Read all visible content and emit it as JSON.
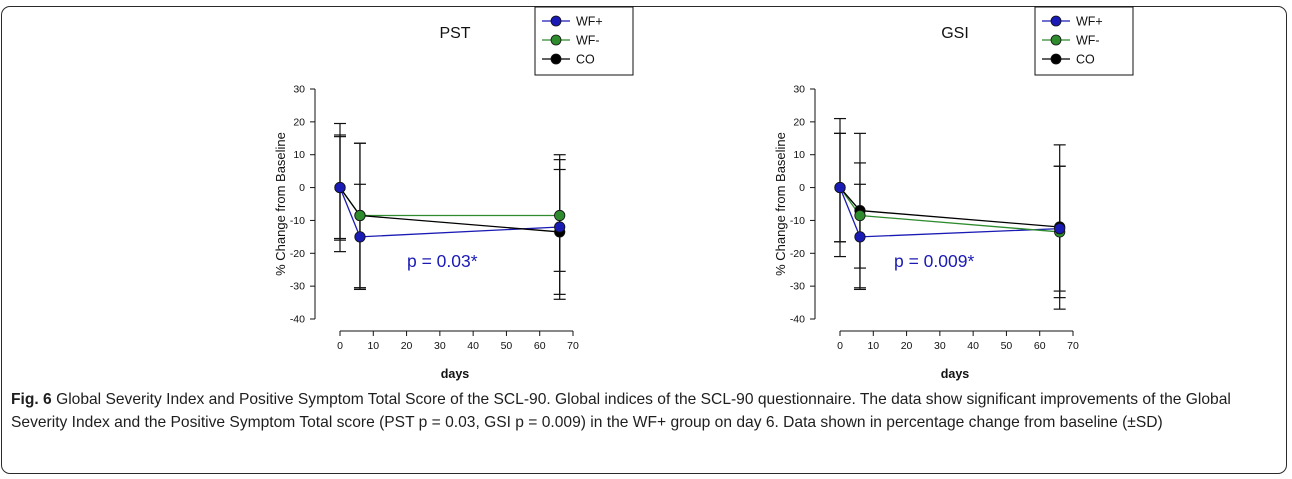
{
  "chart_data": [
    {
      "type": "line",
      "title": "PST",
      "xlabel": "days",
      "ylabel": "% Change from Baseline",
      "xlim": [
        0,
        70
      ],
      "ylim": [
        -40,
        30
      ],
      "xticks": [
        0,
        10,
        20,
        30,
        40,
        50,
        60,
        70
      ],
      "yticks": [
        -40,
        -30,
        -20,
        -10,
        0,
        10,
        20,
        30
      ],
      "x": [
        0,
        6,
        66
      ],
      "grid": false,
      "legend_position": "top-right",
      "series": [
        {
          "name": "WF+",
          "color": "#1a1ab4",
          "values": [
            0,
            -15,
            -12
          ],
          "sd": [
            16,
            16,
            22
          ]
        },
        {
          "name": "WF-",
          "color": "#2e8b2e",
          "values": [
            0,
            -8.5,
            -8.5
          ],
          "sd": [
            15.5,
            22,
            17
          ]
        },
        {
          "name": "CO",
          "color": "#000000",
          "values": [
            0,
            -8.5,
            -13.5
          ],
          "sd": [
            19.5,
            22,
            19
          ]
        }
      ],
      "annotation": "p = 0.03*"
    },
    {
      "type": "line",
      "title": "GSI",
      "xlabel": "days",
      "ylabel": "% Change from Baseline",
      "xlim": [
        0,
        70
      ],
      "ylim": [
        -40,
        30
      ],
      "xticks": [
        0,
        10,
        20,
        30,
        40,
        50,
        60,
        70
      ],
      "yticks": [
        -40,
        -30,
        -20,
        -10,
        0,
        10,
        20,
        30
      ],
      "x": [
        0,
        6,
        66
      ],
      "grid": false,
      "legend_position": "top-right",
      "series": [
        {
          "name": "WF+",
          "color": "#1a1ab4",
          "values": [
            0,
            -15,
            -12.5
          ],
          "sd": [
            16.5,
            16,
            19
          ]
        },
        {
          "name": "WF-",
          "color": "#2e8b2e",
          "values": [
            0,
            -8.5,
            -13.5
          ],
          "sd": [
            16.5,
            16,
            20
          ]
        },
        {
          "name": "CO",
          "color": "#000000",
          "values": [
            0,
            -7,
            -12
          ],
          "sd": [
            21,
            23.5,
            25
          ]
        }
      ],
      "annotation": "p = 0.009*"
    }
  ],
  "caption": {
    "label": "Fig. 6",
    "text": " Global Severity Index and Positive Symptom Total Score of the SCL-90. Global indices of the SCL-90 questionnaire. The data show significant improvements of the Global Severity Index and the Positive Symptom Total score (PST p = 0.03, GSI p = 0.009) in the WF+ group on day 6. Data shown in percentage change from baseline (±SD)"
  }
}
